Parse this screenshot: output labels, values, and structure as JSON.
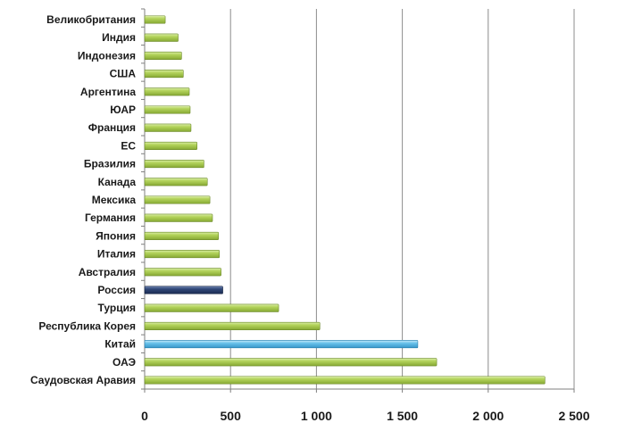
{
  "chart_data": {
    "type": "bar",
    "orientation": "horizontal",
    "categories": [
      "Великобритания",
      "Индия",
      "Индонезия",
      "США",
      "Аргентина",
      "ЮАР",
      "Франция",
      "ЕС",
      "Бразилия",
      "Канада",
      "Мексика",
      "Германия",
      "Япония",
      "Италия",
      "Австралия",
      "Россия",
      "Турция",
      "Республика Корея",
      "Китай",
      "ОАЭ",
      "Саудовская Аравия"
    ],
    "values": [
      120,
      195,
      215,
      225,
      260,
      265,
      270,
      305,
      345,
      365,
      380,
      395,
      430,
      435,
      445,
      455,
      780,
      1020,
      1590,
      1700,
      2330
    ],
    "highlight": {
      "Россия": "#2b4170",
      "Китай": "#5fb8e6"
    },
    "bar_color": "#a6c94a",
    "xlim": [
      0,
      2500
    ],
    "xticks": [
      0,
      500,
      1000,
      1500,
      2000,
      2500
    ],
    "xtick_labels": [
      "0",
      "500",
      "1 000",
      "1 500",
      "2 000",
      "2 500"
    ],
    "grid": "vertical",
    "title": "",
    "xlabel": "",
    "ylabel": ""
  }
}
